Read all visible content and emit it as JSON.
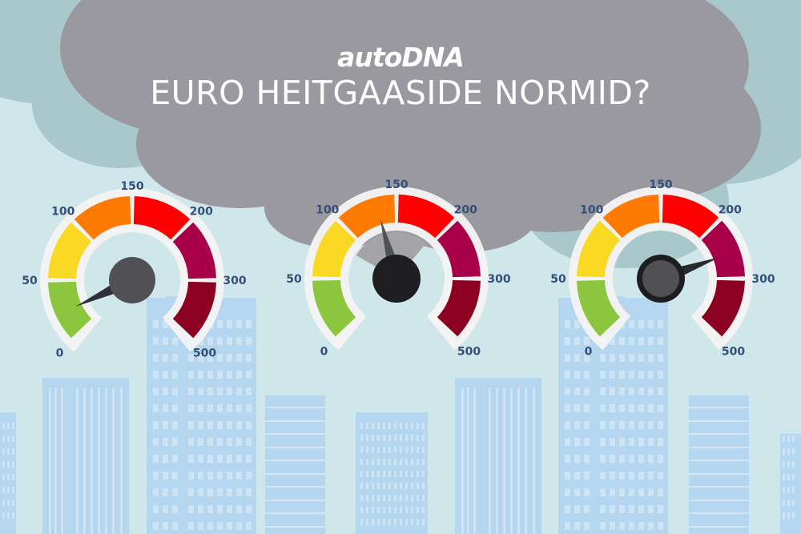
{
  "header": {
    "logo_text": "autoDNA",
    "title": "EURO HEITGAASIDE NORMID?"
  },
  "colors": {
    "sky_top": "#c9e3e6",
    "cloud_dark": "#9a999f",
    "cloud_light": "#a8c6ca",
    "building": "#b5d7ee",
    "building_window": "#d4e6f2",
    "tick_label": "#34507a",
    "needle": "#3e3f44",
    "hub": "#505055"
  },
  "gauge_scale": {
    "tick_labels": [
      "0",
      "50",
      "100",
      "150",
      "200",
      "300",
      "500"
    ],
    "segments": [
      {
        "range": "0-50",
        "color": "#8cc63f"
      },
      {
        "range": "50-100",
        "color": "#f9d923"
      },
      {
        "range": "100-150",
        "color": "#ff7a00"
      },
      {
        "range": "150-200",
        "color": "#ff0000"
      },
      {
        "range": "200-300",
        "color": "#a80048"
      },
      {
        "range": "300-500",
        "color": "#8c0022"
      }
    ]
  },
  "gauges": [
    {
      "id": "gauge-1",
      "needle_value_label": "~25",
      "needle_angle_deg": -115,
      "hub_style": "grey"
    },
    {
      "id": "gauge-2",
      "needle_value_label": "~125",
      "needle_angle_deg": -15,
      "hub_style": "black-with-grey-sweep"
    },
    {
      "id": "gauge-3",
      "needle_value_label": "~250",
      "needle_angle_deg": 70,
      "hub_style": "grey-with-black-ring"
    }
  ]
}
